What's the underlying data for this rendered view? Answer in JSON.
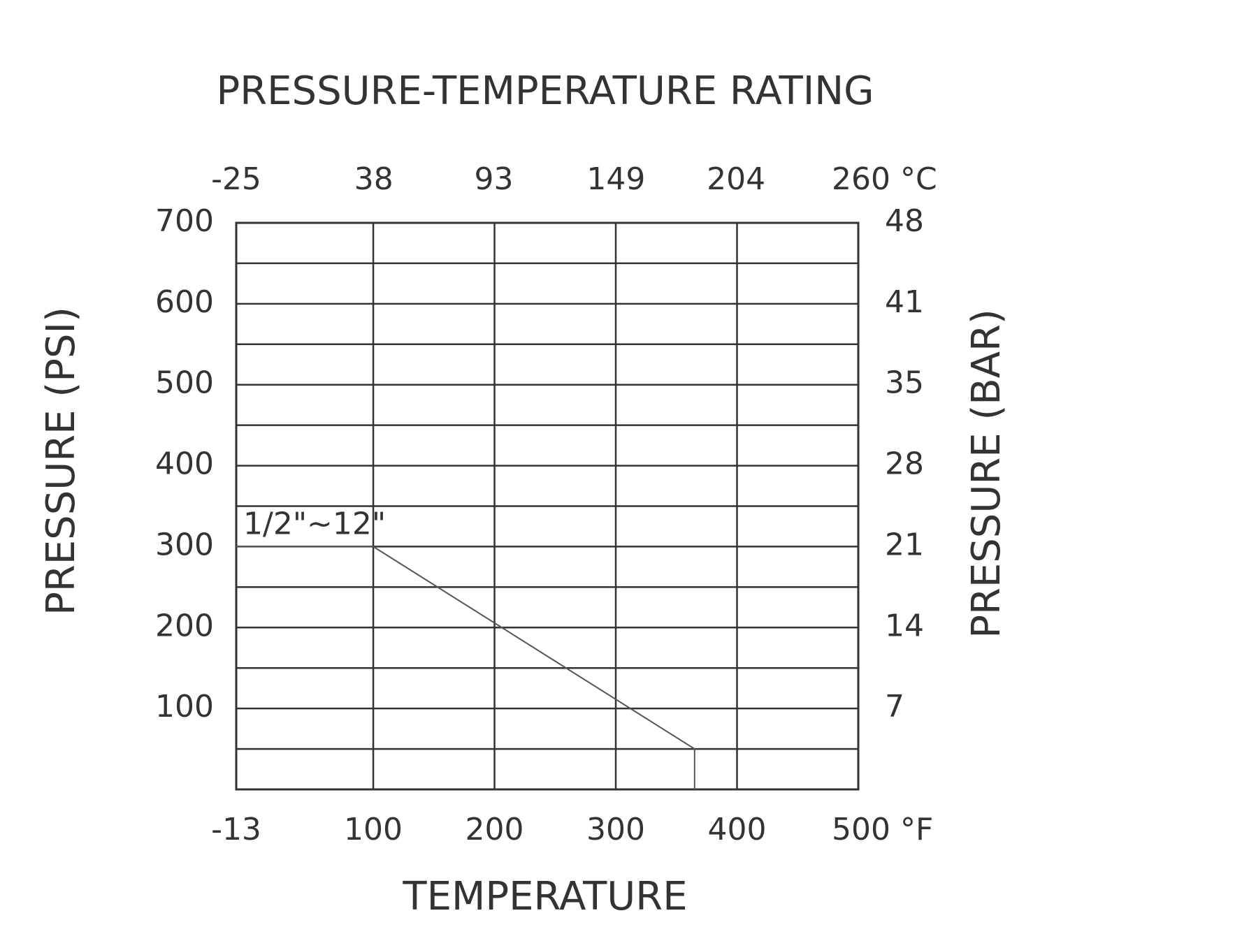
{
  "chart_data": {
    "type": "line",
    "title": "PRESSURE-TEMPERATURE RATING",
    "xlabel": "TEMPERATURE",
    "ylabel": "PRESSURE (PSI)",
    "y2label": "PRESSURE (BAR)",
    "xlim": [
      -13,
      500
    ],
    "xticks": [
      -13,
      100,
      200,
      300,
      400,
      {
        "value": 500,
        "label": "500 °F"
      }
    ],
    "x2lim": [
      -25,
      260
    ],
    "x2ticks": [
      -25,
      38,
      93,
      149,
      204,
      {
        "value": 260,
        "label": "260 °C"
      }
    ],
    "ylim": [
      0,
      700
    ],
    "yticks": [
      100,
      200,
      300,
      400,
      500,
      600,
      700
    ],
    "minor_yticks": [
      50,
      150,
      250,
      350,
      450,
      550,
      650
    ],
    "y2lim": [
      0,
      48.3
    ],
    "y2ticks": [
      {
        "value": 6.9,
        "label": "7"
      },
      {
        "value": 13.8,
        "label": "14"
      },
      {
        "value": 20.7,
        "label": "21"
      },
      {
        "value": 27.6,
        "label": "28"
      },
      {
        "value": 34.5,
        "label": "35"
      },
      {
        "value": 41.4,
        "label": "41"
      },
      {
        "value": 48.3,
        "label": "48"
      }
    ],
    "grid": true,
    "series": [
      {
        "name": "1/2\"~12\"",
        "color": "#555555",
        "x": [
          -13,
          100,
          365,
          365
        ],
        "values": [
          300,
          300,
          50,
          0
        ]
      }
    ]
  }
}
